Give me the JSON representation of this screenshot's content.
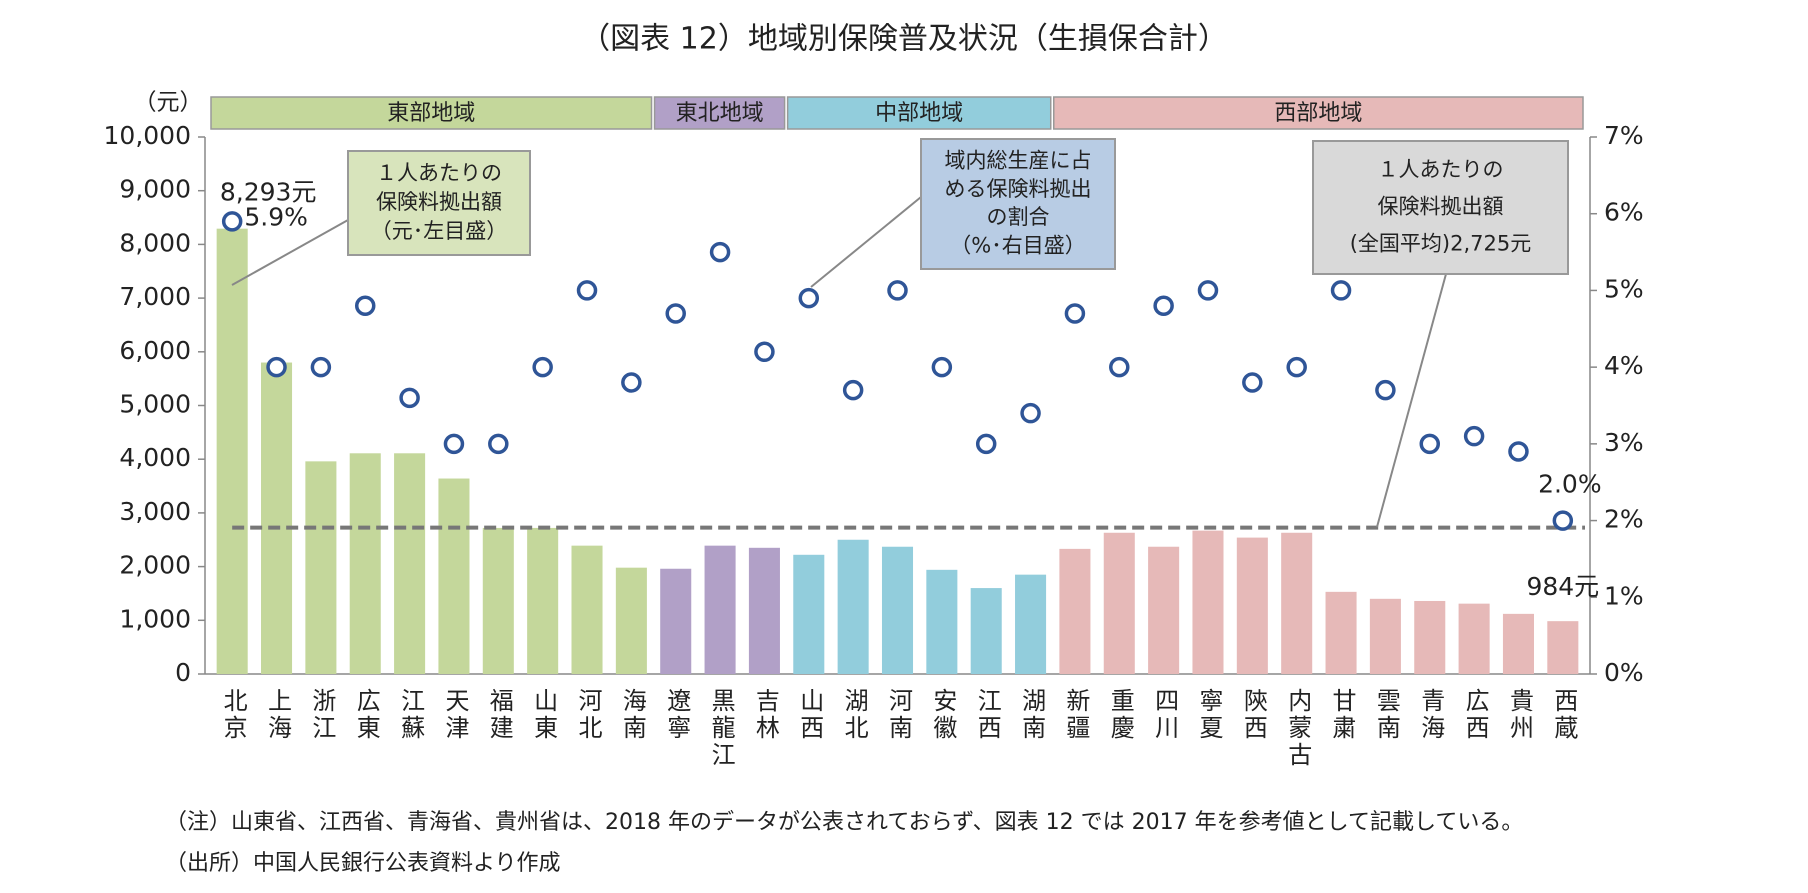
{
  "chart_data": {
    "type": "bar_dot",
    "title": "（図表 12）地域別保険普及状況（生損保合計）",
    "y_label": "（元）",
    "regions": [
      {
        "name": "東部地域",
        "color": "#c4d79b",
        "categories": [
          "北京",
          "上海",
          "浙江",
          "広東",
          "江蘇",
          "天津",
          "福建",
          "山東",
          "河北",
          "海南"
        ]
      },
      {
        "name": "東北地域",
        "color": "#b1a0c7",
        "categories": [
          "遼寧",
          "黒龍江",
          "吉林"
        ]
      },
      {
        "name": "中部地域",
        "color": "#92cddc",
        "categories": [
          "山西",
          "湖北",
          "河南",
          "安徽",
          "江西",
          "湖南"
        ]
      },
      {
        "name": "西部地域",
        "color": "#e6b9b8",
        "categories": [
          "新疆",
          "重慶",
          "四川",
          "寧夏",
          "陝西",
          "内蒙古",
          "甘粛",
          "雲南",
          "青海",
          "広西",
          "貴州",
          "西蔵"
        ]
      }
    ],
    "series": [
      {
        "type": "bar",
        "axis": "y",
        "values": [
          8293,
          5800,
          3960,
          4110,
          4110,
          3640,
          2720,
          2720,
          2390,
          1980,
          1960,
          2390,
          2350,
          2220,
          2500,
          2370,
          1940,
          1600,
          1850,
          2330,
          2630,
          2370,
          2670,
          2540,
          2630,
          1530,
          1400,
          1360,
          1310,
          1120,
          984
        ],
        "value_labels": [
          "8,293元",
          null,
          null,
          null,
          null,
          null,
          null,
          null,
          null,
          null,
          null,
          null,
          null,
          null,
          null,
          null,
          null,
          null,
          null,
          null,
          null,
          null,
          null,
          null,
          null,
          null,
          null,
          null,
          null,
          null,
          "984元"
        ]
      },
      {
        "type": "dot",
        "axis": "y2",
        "color": "#2f5597",
        "values": [
          5.9,
          4.0,
          4.0,
          4.8,
          3.6,
          3.0,
          3.0,
          4.0,
          5.0,
          3.8,
          4.7,
          5.5,
          4.2,
          4.9,
          3.7,
          5.0,
          4.0,
          3.0,
          3.4,
          4.7,
          4.0,
          4.8,
          5.0,
          3.8,
          4.0,
          5.0,
          3.7,
          3.0,
          3.1,
          2.9,
          2.0
        ],
        "value_labels": [
          "5.9%",
          null,
          null,
          null,
          null,
          null,
          null,
          null,
          null,
          null,
          null,
          null,
          null,
          null,
          null,
          null,
          null,
          null,
          null,
          null,
          null,
          null,
          null,
          null,
          null,
          null,
          null,
          null,
          null,
          null,
          "2.0%"
        ]
      }
    ],
    "average": 2725,
    "callouts": [
      {
        "lines": [
          "１人あたりの",
          "保険料拠出額",
          "（元･左目盛）"
        ],
        "color": "#d8e4bc"
      },
      {
        "lines": [
          "域内総生産に占",
          "める保険料拠出",
          "の割合",
          "（%･右目盛）"
        ],
        "color": "#b8cce4"
      },
      {
        "lines": [
          "１人あたりの",
          "保険料拠出額",
          "(全国平均)2,725元"
        ],
        "color": "#d9d9d9"
      }
    ],
    "ylim": [
      0,
      10000
    ],
    "yticks": [
      0,
      {
        "value": 1000,
        "label": "1,000"
      },
      {
        "value": 2000,
        "label": "2,000"
      },
      {
        "value": 3000,
        "label": "3,000"
      },
      {
        "value": 4000,
        "label": "4,000"
      },
      {
        "value": 5000,
        "label": "5,000"
      },
      {
        "value": 6000,
        "label": "6,000"
      },
      {
        "value": 7000,
        "label": "7,000"
      },
      {
        "value": 8000,
        "label": "8,000"
      },
      {
        "value": 9000,
        "label": "9,000"
      },
      {
        "value": 10000,
        "label": "10,000"
      }
    ],
    "y2lim": [
      0,
      7
    ],
    "y2ticks": [
      {
        "value": 0,
        "label": "0%"
      },
      {
        "value": 1,
        "label": "1%"
      },
      {
        "value": 2,
        "label": "2%"
      },
      {
        "value": 3,
        "label": "3%"
      },
      {
        "value": 4,
        "label": "4%"
      },
      {
        "value": 5,
        "label": "5%"
      },
      {
        "value": 6,
        "label": "6%"
      },
      {
        "value": 7,
        "label": "7%"
      }
    ],
    "notes": [
      "（注）山東省、江西省、青海省、貴州省は、2018 年のデータが公表されておらず、図表 12 では 2017 年を参考値として記載している。",
      "（出所）中国人民銀行公表資料より作成"
    ]
  }
}
